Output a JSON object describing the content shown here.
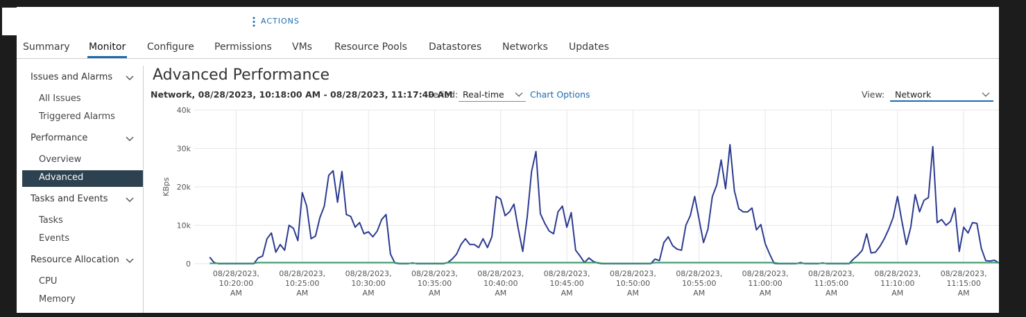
{
  "header": {
    "actions": "ACTIONS"
  },
  "tabs": [
    "Summary",
    "Monitor",
    "Configure",
    "Permissions",
    "VMs",
    "Resource Pools",
    "Datastores",
    "Networks",
    "Updates"
  ],
  "sidebar": [
    {
      "title": "Issues and Alarms",
      "items": [
        "All Issues",
        "Triggered Alarms"
      ]
    },
    {
      "title": "Performance",
      "items": [
        "Overview",
        "Advanced"
      ]
    },
    {
      "title": "Tasks and Events",
      "items": [
        "Tasks",
        "Events"
      ]
    },
    {
      "title": "Resource Allocation",
      "items": [
        "CPU",
        "Memory"
      ]
    }
  ],
  "content": {
    "title": "Advanced Performance",
    "subtitle": "Network, 08/28/2023, 10:18:00 AM - 08/28/2023, 11:17:40 AM",
    "period_label": "Period:",
    "period": "Real-time",
    "chart_options": "Chart Options",
    "view_label": "View:",
    "view": "Network"
  },
  "chart_data": {
    "type": "line",
    "y_label": "KBps",
    "ylim": [
      0,
      40000
    ],
    "yticks": [
      0,
      {
        "value": 10000,
        "label": "10k"
      },
      {
        "value": 20000,
        "label": "20k"
      },
      {
        "value": 30000,
        "label": "30k"
      },
      {
        "value": 40000,
        "label": "40k"
      }
    ],
    "xlim": [
      -3.5,
      179
    ],
    "xticks": [
      {
        "value": 6,
        "label": "08/28/2023,\n10:20:00\nAM"
      },
      {
        "value": 21,
        "label": "08/28/2023,\n10:25:00\nAM"
      },
      {
        "value": 36,
        "label": "08/28/2023,\n10:30:00\nAM"
      },
      {
        "value": 51,
        "label": "08/28/2023,\n10:35:00\nAM"
      },
      {
        "value": 66,
        "label": "08/28/2023,\n10:40:00\nAM"
      },
      {
        "value": 81,
        "label": "08/28/2023,\n10:45:00\nAM"
      },
      {
        "value": 96,
        "label": "08/28/2023,\n10:50:00\nAM"
      },
      {
        "value": 111,
        "label": "08/28/2023,\n10:55:00\nAM"
      },
      {
        "value": 126,
        "label": "08/28/2023,\n11:00:00\nAM"
      },
      {
        "value": 141,
        "label": "08/28/2023,\n11:05:00\nAM"
      },
      {
        "value": 156,
        "label": "08/28/2023,\n11:10:00\nAM"
      },
      {
        "value": 171,
        "label": "08/28/2023,\n11:15:00\nAM"
      }
    ],
    "grid": true,
    "series": [
      {
        "color": "#2b3a8f",
        "values": [
          1700,
          300,
          0,
          0,
          0,
          0,
          0,
          0,
          0,
          0,
          0,
          1500,
          2000,
          6500,
          8000,
          3000,
          5000,
          3500,
          10000,
          9200,
          6000,
          18500,
          15000,
          6500,
          7200,
          12000,
          15000,
          23000,
          24200,
          16000,
          24000,
          12800,
          12300,
          9500,
          10700,
          7800,
          8300,
          7000,
          8500,
          11500,
          12800,
          2500,
          200,
          0,
          0,
          0,
          200,
          0,
          0,
          0,
          0,
          0,
          0,
          0,
          300,
          1200,
          2500,
          5000,
          6500,
          5000,
          5000,
          4200,
          6500,
          4200,
          7000,
          17500,
          16800,
          12500,
          13500,
          15500,
          9000,
          3200,
          12000,
          24000,
          29200,
          13000,
          10500,
          8500,
          7800,
          13500,
          15000,
          9500,
          13300,
          3500,
          2000,
          300,
          1500,
          600,
          200,
          0,
          0,
          0,
          0,
          0,
          0,
          0,
          0,
          0,
          0,
          0,
          0,
          1200,
          800,
          5500,
          7000,
          4700,
          3800,
          3500,
          10000,
          12500,
          17500,
          11500,
          5500,
          9000,
          17500,
          20500,
          27000,
          19500,
          31000,
          19000,
          14300,
          13500,
          13500,
          14500,
          8800,
          10200,
          5200,
          2500,
          100,
          0,
          0,
          0,
          0,
          0,
          300,
          0,
          0,
          0,
          0,
          200,
          0,
          0,
          0,
          0,
          0,
          0,
          1200,
          2200,
          3500,
          7800,
          2800,
          3000,
          4500,
          6500,
          9000,
          12000,
          17500,
          11000,
          5000,
          9500,
          18000,
          13500,
          16500,
          17200,
          30500,
          10700,
          11500,
          10000,
          11000,
          14500,
          3200,
          9500,
          8000,
          10700,
          10500,
          4000,
          800,
          700,
          900,
          200
        ]
      },
      {
        "color": "#3a9a6a",
        "values": [
          100,
          100,
          100,
          100,
          100,
          100,
          100,
          100,
          100,
          100,
          100,
          300,
          300,
          300,
          300,
          300,
          300,
          300,
          300,
          300,
          300,
          300,
          300,
          300,
          300,
          300,
          300,
          300,
          300,
          300,
          300,
          300,
          300,
          300,
          300,
          300,
          300,
          300,
          300,
          300,
          300,
          300,
          300,
          100,
          100,
          100,
          100,
          100,
          100,
          100,
          100,
          100,
          100,
          100,
          300,
          300,
          300,
          300,
          300,
          300,
          300,
          300,
          300,
          300,
          300,
          300,
          300,
          300,
          300,
          300,
          300,
          300,
          300,
          300,
          300,
          300,
          300,
          300,
          300,
          300,
          300,
          300,
          300,
          300,
          300,
          300,
          300,
          300,
          300,
          100,
          100,
          100,
          100,
          100,
          100,
          100,
          100,
          100,
          100,
          100,
          100,
          300,
          300,
          300,
          300,
          300,
          300,
          300,
          300,
          300,
          300,
          300,
          300,
          300,
          300,
          300,
          300,
          300,
          300,
          300,
          300,
          300,
          300,
          300,
          300,
          300,
          300,
          300,
          300,
          100,
          100,
          100,
          100,
          100,
          100,
          100,
          100,
          100,
          100,
          100,
          100,
          100,
          100,
          100,
          100,
          100,
          300,
          300,
          300,
          300,
          300,
          300,
          300,
          300,
          300,
          300,
          300,
          300,
          300,
          300,
          300,
          300,
          300,
          300,
          300,
          300,
          300,
          300,
          300,
          300,
          300,
          300,
          300,
          300,
          300,
          300,
          300,
          300,
          300,
          300
        ]
      }
    ]
  }
}
